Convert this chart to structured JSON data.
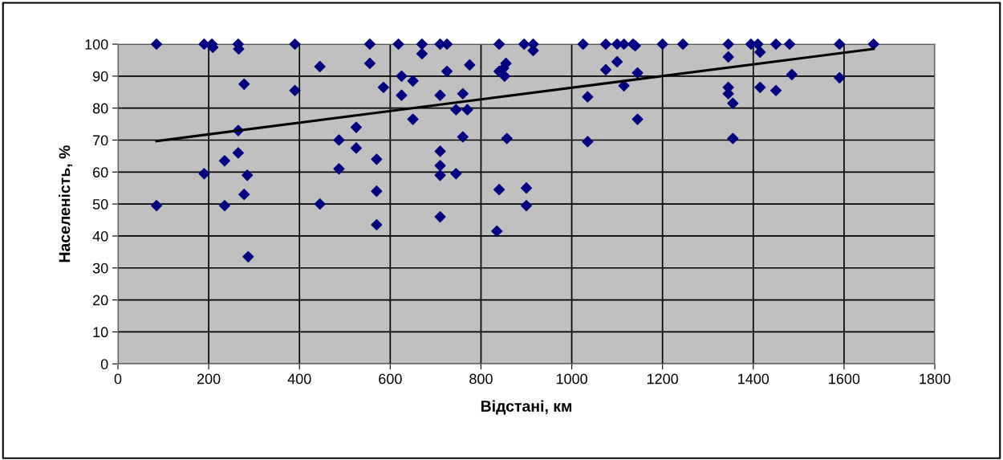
{
  "chart_data": {
    "type": "scatter",
    "xlabel": "Відстані, км",
    "ylabel": "Населеність, %",
    "xlim": [
      0,
      1800
    ],
    "xticks": [
      0,
      200,
      400,
      600,
      800,
      1000,
      1200,
      1400,
      1600,
      1800
    ],
    "ylim": [
      0,
      100
    ],
    "yticks": [
      0,
      10,
      20,
      30,
      40,
      50,
      60,
      70,
      80,
      90,
      100
    ],
    "grid": true,
    "legend": false,
    "series": [
      {
        "color": "#000080",
        "marker": "diamond",
        "x": [
          85,
          85,
          190,
          207,
          209,
          190,
          235,
          235,
          265,
          266,
          265,
          265,
          278,
          278,
          285,
          287,
          390,
          390,
          445,
          445,
          487,
          487,
          525,
          525,
          555,
          555,
          570,
          570,
          570,
          585,
          618,
          625,
          625,
          650,
          650,
          670,
          670,
          710,
          710,
          710,
          710,
          710,
          710,
          725,
          725,
          745,
          745,
          760,
          760,
          770,
          775,
          840,
          840,
          840,
          835,
          850,
          852,
          855,
          857,
          895,
          900,
          900,
          915,
          915,
          1025,
          1035,
          1035,
          1075,
          1075,
          1100,
          1100,
          1115,
          1115,
          1135,
          1140,
          1145,
          1145,
          1200,
          1245,
          1345,
          1345,
          1345,
          1345,
          1355,
          1355,
          1395,
          1410,
          1415,
          1415,
          1450,
          1450,
          1480,
          1485,
          1590,
          1590,
          1665
        ],
        "values": [
          100,
          49.5,
          100,
          100,
          99,
          59.5,
          63.5,
          49.5,
          100,
          98.5,
          73,
          66,
          87.5,
          53,
          59,
          33.5,
          100,
          85.5,
          93,
          50,
          70,
          61,
          74,
          67.5,
          100,
          94,
          64,
          54,
          43.5,
          86.5,
          100,
          90,
          84,
          88.5,
          76.5,
          100,
          97,
          100,
          84,
          66.5,
          62,
          59,
          46,
          100,
          91.5,
          79.5,
          59.5,
          84.5,
          71,
          79.5,
          93.5,
          100,
          91.5,
          54.5,
          41.5,
          92.5,
          90,
          94,
          70.5,
          100,
          55,
          49.5,
          100,
          98,
          100,
          83.5,
          69.5,
          100,
          92,
          100,
          94.5,
          100,
          87,
          100,
          99.5,
          91,
          76.5,
          100,
          100,
          100,
          96,
          86.5,
          84.5,
          81.5,
          70.5,
          100,
          100,
          97.5,
          86.5,
          100,
          85.5,
          100,
          90.5,
          100,
          89.5,
          100
        ]
      },
      {
        "type": "line",
        "color": "#000000",
        "line_style": "solid",
        "marker": "none",
        "x": [
          85,
          1665
        ],
        "values": [
          69.7,
          98.5
        ]
      }
    ]
  }
}
